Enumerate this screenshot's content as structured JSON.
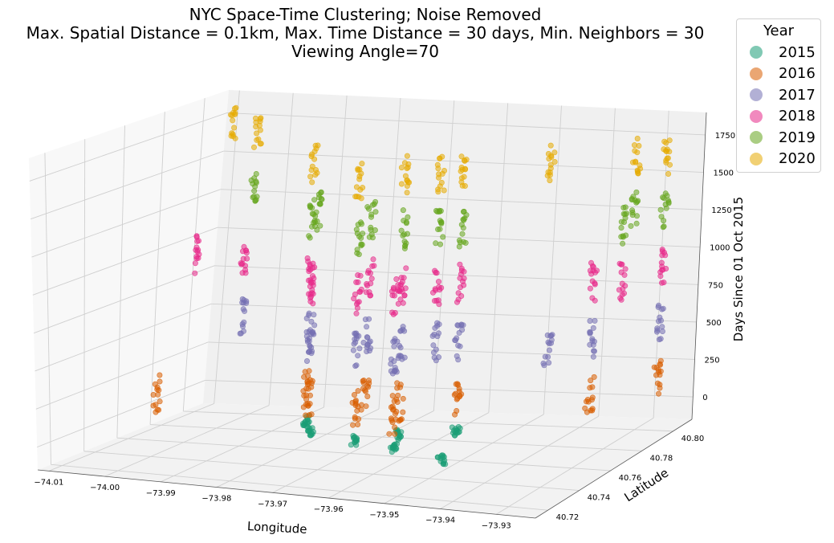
{
  "chart_data": {
    "type": "scatter",
    "title_lines": [
      "NYC Space-Time Clustering; Noise Removed",
      "Max. Spatial Distance = 0.1km, Max. Time Distance = 30 days, Min. Neighbors = 30",
      "Viewing Angle=70"
    ],
    "xlabel": "Longitude",
    "ylabel": "Latitude",
    "zlabel": "Days Since 01 Oct 2015",
    "x_ticks": [
      "−74.01",
      "−74.00",
      "−73.99",
      "−73.98",
      "−73.97",
      "−73.96",
      "−73.95",
      "−73.94",
      "−73.93"
    ],
    "y_ticks": [
      "40.72",
      "40.74",
      "40.76",
      "40.78",
      "40.80"
    ],
    "z_ticks": [
      "0",
      "250",
      "500",
      "750",
      "1000",
      "1250",
      "1500",
      "1750"
    ],
    "grid": true,
    "legend": {
      "title": "Year",
      "placement": "outside-top-right"
    },
    "series": [
      {
        "name": "2015",
        "color": "#1b9e77"
      },
      {
        "name": "2016",
        "color": "#d95f02"
      },
      {
        "name": "2017",
        "color": "#7570b3"
      },
      {
        "name": "2018",
        "color": "#e7298a"
      },
      {
        "name": "2019",
        "color": "#66a61e"
      },
      {
        "name": "2020",
        "color": "#e6ab02"
      }
    ]
  }
}
